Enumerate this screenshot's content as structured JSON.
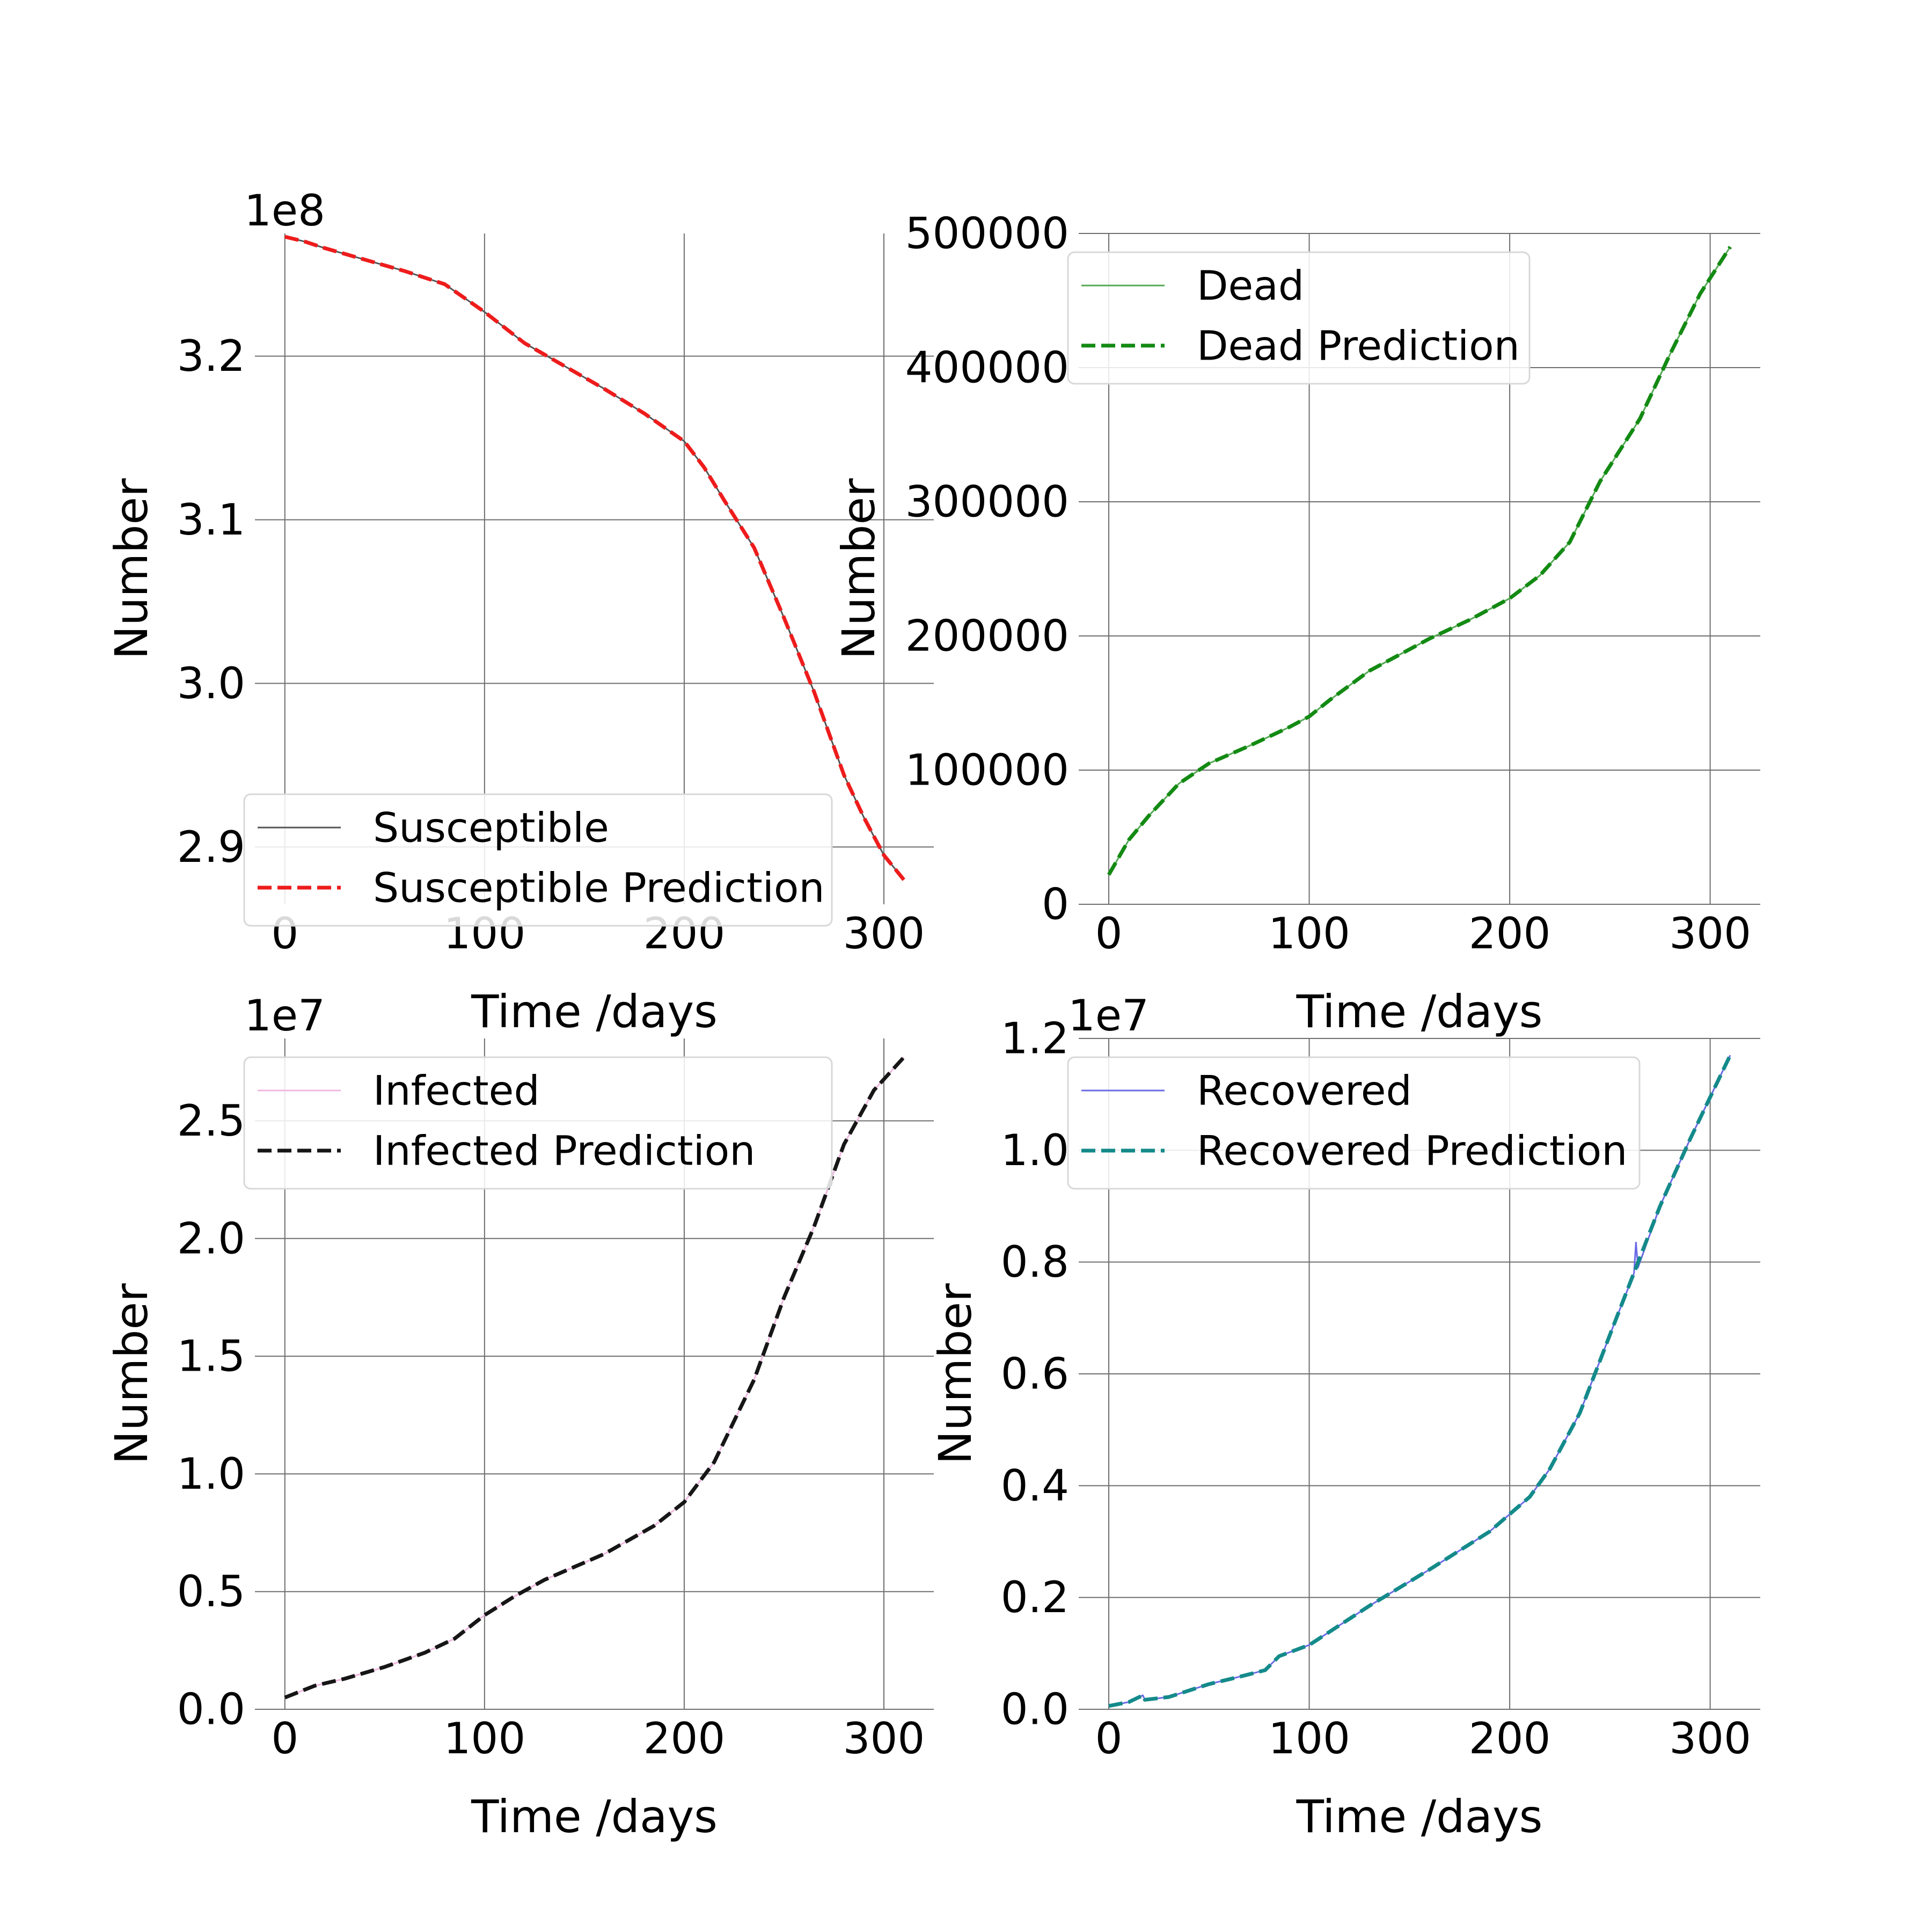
{
  "chart_data": [
    {
      "type": "line",
      "title": "",
      "xlabel": "Time /days",
      "ylabel": "Number",
      "offset_label": "1e8",
      "xlim": [
        -15,
        325
      ],
      "ylim": [
        2.865,
        3.275
      ],
      "xticks": [
        0,
        100,
        200,
        300
      ],
      "yticks": [
        2.9,
        3.0,
        3.1,
        3.2
      ],
      "ytick_labels": [
        "2.9",
        "3.0",
        "3.1",
        "3.2"
      ],
      "grid": true,
      "legend_position": "lower-left",
      "series": [
        {
          "name": "Susceptible",
          "color": "#555555",
          "style": "solid",
          "x": [
            0,
            10,
            20,
            40,
            60,
            80,
            100,
            120,
            140,
            160,
            180,
            200,
            210,
            220,
            235,
            250,
            265,
            280,
            290,
            300,
            310
          ],
          "y": [
            3.273,
            3.27,
            3.266,
            3.259,
            3.252,
            3.244,
            3.227,
            3.208,
            3.194,
            3.18,
            3.165,
            3.148,
            3.132,
            3.112,
            3.083,
            3.04,
            2.995,
            2.944,
            2.918,
            2.895,
            2.88
          ]
        },
        {
          "name": "Susceptible Prediction",
          "color": "#ee1c1c",
          "style": "dashed",
          "x": [
            0,
            10,
            20,
            40,
            60,
            80,
            100,
            120,
            140,
            160,
            180,
            200,
            210,
            220,
            235,
            250,
            265,
            280,
            290,
            300,
            310
          ],
          "y": [
            3.273,
            3.27,
            3.266,
            3.259,
            3.252,
            3.244,
            3.227,
            3.208,
            3.194,
            3.18,
            3.165,
            3.148,
            3.132,
            3.112,
            3.083,
            3.04,
            2.995,
            2.944,
            2.918,
            2.895,
            2.88
          ]
        }
      ]
    },
    {
      "type": "line",
      "title": "",
      "xlabel": "Time /days",
      "ylabel": "Number",
      "offset_label": "",
      "xlim": [
        -15,
        325
      ],
      "ylim": [
        0,
        500000
      ],
      "xticks": [
        0,
        100,
        200,
        300
      ],
      "yticks": [
        0,
        100000,
        200000,
        300000,
        400000,
        500000
      ],
      "ytick_labels": [
        "0",
        "100000",
        "200000",
        "300000",
        "400000",
        "500000"
      ],
      "grid": true,
      "legend_position": "upper-left",
      "series": [
        {
          "name": "Dead",
          "color": "#55aa55",
          "style": "solid",
          "x": [
            0,
            5,
            10,
            20,
            35,
            50,
            70,
            90,
            100,
            110,
            130,
            160,
            180,
            200,
            215,
            230,
            245,
            265,
            280,
            295,
            310
          ],
          "y": [
            22000,
            35000,
            48000,
            66000,
            90000,
            105000,
            118000,
            132000,
            140000,
            152000,
            174000,
            198000,
            212000,
            228000,
            245000,
            270000,
            315000,
            362000,
            410000,
            455000,
            490000
          ]
        },
        {
          "name": "Dead Prediction",
          "color": "#138a13",
          "style": "dashed",
          "x": [
            0,
            5,
            10,
            20,
            35,
            50,
            70,
            90,
            100,
            110,
            130,
            160,
            180,
            200,
            215,
            230,
            245,
            265,
            280,
            295,
            310
          ],
          "y": [
            22000,
            35000,
            48000,
            66000,
            90000,
            105000,
            118000,
            132000,
            140000,
            152000,
            174000,
            198000,
            212000,
            228000,
            245000,
            270000,
            315000,
            362000,
            410000,
            455000,
            490000
          ]
        }
      ]
    },
    {
      "type": "line",
      "title": "",
      "xlabel": "Time /days",
      "ylabel": "Number",
      "offset_label": "1e7",
      "xlim": [
        -15,
        325
      ],
      "ylim": [
        0,
        2.85
      ],
      "xticks": [
        0,
        100,
        200,
        300
      ],
      "yticks": [
        0.0,
        0.5,
        1.0,
        1.5,
        2.0,
        2.5
      ],
      "ytick_labels": [
        "0.0",
        "0.5",
        "1.0",
        "1.5",
        "2.0",
        "2.5"
      ],
      "grid": true,
      "legend_position": "upper-left",
      "series": [
        {
          "name": "Infected",
          "color": "#f0b8e0",
          "style": "solid",
          "x": [
            0,
            15,
            30,
            50,
            70,
            85,
            100,
            115,
            130,
            160,
            185,
            200,
            215,
            235,
            250,
            265,
            280,
            295,
            310
          ],
          "y": [
            0.05,
            0.1,
            0.13,
            0.18,
            0.24,
            0.3,
            0.4,
            0.48,
            0.55,
            0.66,
            0.78,
            0.88,
            1.05,
            1.4,
            1.75,
            2.05,
            2.4,
            2.63,
            2.77
          ]
        },
        {
          "name": "Infected Prediction",
          "color": "#161616",
          "style": "dashed",
          "x": [
            0,
            15,
            30,
            50,
            70,
            85,
            100,
            115,
            130,
            160,
            185,
            200,
            215,
            235,
            250,
            265,
            280,
            295,
            310
          ],
          "y": [
            0.05,
            0.1,
            0.13,
            0.18,
            0.24,
            0.3,
            0.4,
            0.48,
            0.55,
            0.66,
            0.78,
            0.88,
            1.05,
            1.4,
            1.75,
            2.05,
            2.4,
            2.63,
            2.77
          ]
        }
      ]
    },
    {
      "type": "line",
      "title": "",
      "xlabel": "Time /days",
      "ylabel": "Number",
      "offset_label": "1e7",
      "xlim": [
        -15,
        325
      ],
      "ylim": [
        0,
        1.2
      ],
      "xticks": [
        0,
        100,
        200,
        300
      ],
      "yticks": [
        0.0,
        0.2,
        0.4,
        0.6,
        0.8,
        1.0,
        1.2
      ],
      "ytick_labels": [
        "0.0",
        "0.2",
        "0.4",
        "0.6",
        "0.8",
        "1.0",
        "1.2"
      ],
      "grid": true,
      "legend_position": "upper-left",
      "series": [
        {
          "name": "Recovered",
          "color": "#6a6ae6",
          "style": "solid",
          "x": [
            0,
            10,
            17,
            18,
            30,
            50,
            65,
            78,
            85,
            100,
            130,
            160,
            190,
            210,
            220,
            235,
            250,
            262,
            263,
            264,
            275,
            290,
            310
          ],
          "y": [
            0.006,
            0.013,
            0.025,
            0.017,
            0.022,
            0.045,
            0.058,
            0.07,
            0.095,
            0.115,
            0.185,
            0.25,
            0.318,
            0.38,
            0.43,
            0.53,
            0.67,
            0.78,
            0.835,
            0.79,
            0.9,
            1.02,
            1.17
          ]
        },
        {
          "name": "Recovered Prediction",
          "color": "#148a8a",
          "style": "dashed",
          "x": [
            0,
            10,
            17,
            18,
            30,
            50,
            65,
            78,
            85,
            100,
            130,
            160,
            190,
            210,
            220,
            235,
            250,
            263,
            275,
            290,
            310
          ],
          "y": [
            0.006,
            0.013,
            0.025,
            0.017,
            0.022,
            0.045,
            0.058,
            0.07,
            0.095,
            0.115,
            0.185,
            0.25,
            0.318,
            0.38,
            0.43,
            0.53,
            0.67,
            0.79,
            0.9,
            1.02,
            1.17
          ]
        }
      ]
    }
  ]
}
